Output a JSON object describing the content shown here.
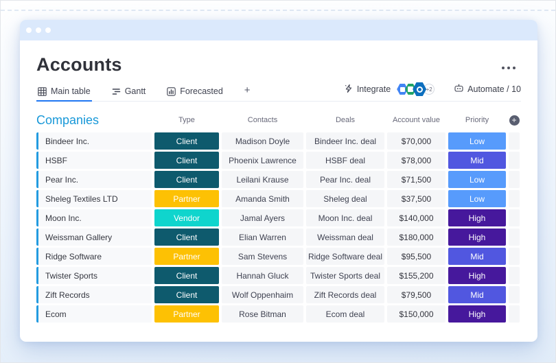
{
  "page": {
    "title": "Accounts"
  },
  "tabs": [
    {
      "label": "Main table",
      "active": true
    },
    {
      "label": "Gantt",
      "active": false
    },
    {
      "label": "Forecasted",
      "active": false
    },
    {
      "label": "+",
      "active": false
    }
  ],
  "toolbar": {
    "integrate_label": "Integrate",
    "apps_overflow_badge": "+2",
    "automate_label": "Automate / 10"
  },
  "icons": {
    "window-dots": "three white circles",
    "main-table-icon": "grid",
    "gantt-icon": "horizontal bars",
    "forecasted-icon": "bar chart in rounded square",
    "integrate-icon": "lightning bolt",
    "calendar-app-icon": "blue hexagon app badge",
    "excel-app-icon": "green hexagon app badge",
    "outlook-app-icon": "blue hexagon app badge with ring",
    "automate-icon": "robot head",
    "ellipsis-icon": "three dots",
    "add-column-icon": "plus in dark circle"
  },
  "table": {
    "group_title": "Companies",
    "columns": [
      "Type",
      "Contacts",
      "Deals",
      "Account value",
      "Priority"
    ],
    "rows": [
      {
        "company": "Bindeer Inc.",
        "type": "Client",
        "contact": "Madison Doyle",
        "deal": "Bindeer Inc. deal",
        "value": "$70,000",
        "priority": "Low"
      },
      {
        "company": "HSBF",
        "type": "Client",
        "contact": "Phoenix Lawrence",
        "deal": "HSBF deal",
        "value": "$78,000",
        "priority": "Mid"
      },
      {
        "company": "Pear Inc.",
        "type": "Client",
        "contact": "Leilani Krause",
        "deal": "Pear Inc. deal",
        "value": "$71,500",
        "priority": "Low"
      },
      {
        "company": "Sheleg Textiles LTD",
        "type": "Partner",
        "contact": "Amanda Smith",
        "deal": "Sheleg deal",
        "value": "$37,500",
        "priority": "Low"
      },
      {
        "company": "Moon Inc.",
        "type": "Vendor",
        "contact": "Jamal Ayers",
        "deal": "Moon Inc. deal",
        "value": "$140,000",
        "priority": "High"
      },
      {
        "company": "Weissman Gallery",
        "type": "Client",
        "contact": "Elian Warren",
        "deal": "Weissman deal",
        "value": "$180,000",
        "priority": "High"
      },
      {
        "company": "Ridge Software",
        "type": "Partner",
        "contact": "Sam Stevens",
        "deal": "Ridge Software deal",
        "value": "$95,500",
        "priority": "Mid"
      },
      {
        "company": "Twister Sports",
        "type": "Client",
        "contact": "Hannah Gluck",
        "deal": "Twister Sports deal",
        "value": "$155,200",
        "priority": "High"
      },
      {
        "company": "Zift Records",
        "type": "Client",
        "contact": "Wolf Oppenhaim",
        "deal": "Zift Records deal",
        "value": "$79,500",
        "priority": "Mid"
      },
      {
        "company": "Ecom",
        "type": "Partner",
        "contact": "Rose Bitman",
        "deal": "Ecom deal",
        "value": "$150,000",
        "priority": "High"
      }
    ]
  },
  "colors": {
    "accent_tab": "#1f76f2",
    "group_blue": "#239be0",
    "group_title_blue": "#1898d8",
    "type": {
      "Client": "#0e5a6d",
      "Partner": "#fdc104",
      "Vendor": "#0fd5cd"
    },
    "priority": {
      "Low": "#579bfc",
      "Mid": "#5157e0",
      "High": "#46189c"
    }
  }
}
